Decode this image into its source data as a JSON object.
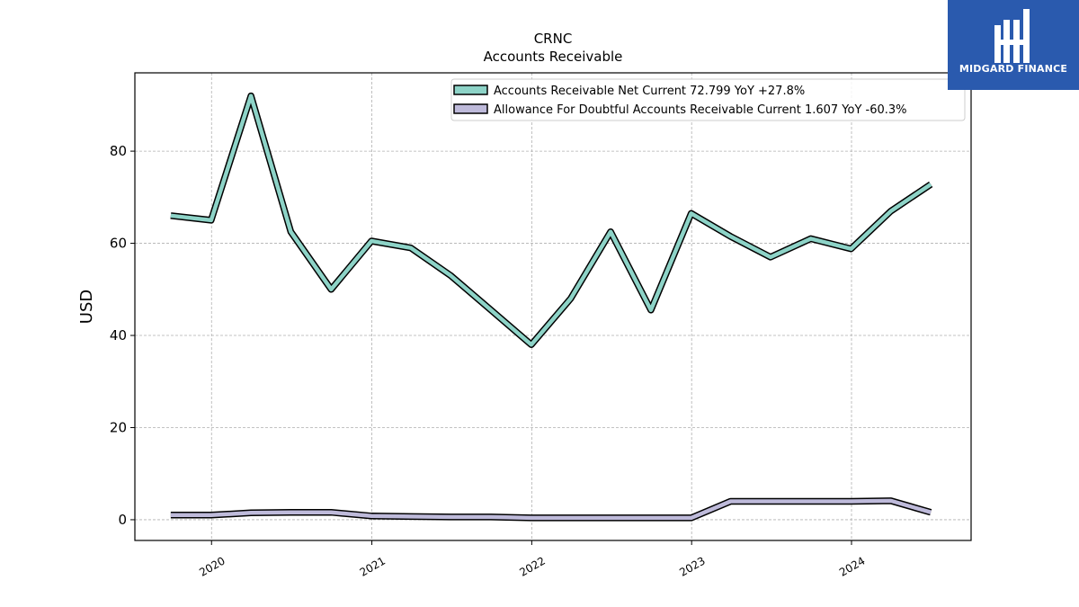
{
  "brand": {
    "name": "MIDGARD FINANCE",
    "bg_color": "#2a5aae"
  },
  "chart_data": {
    "type": "line",
    "title": "CRNC",
    "subtitle": "Accounts Receivable",
    "xlabel": "",
    "ylabel": "USD",
    "x_tick_labels": [
      "2020",
      "2021",
      "2022",
      "2023",
      "2024"
    ],
    "y_ticks": [
      0,
      20,
      40,
      60,
      80
    ],
    "xlim": [
      "2019-07-10",
      "2024-09-30"
    ],
    "ylim": [
      -4.5,
      97
    ],
    "grid": true,
    "legend_position": "top-right",
    "x": [
      "2019-09-30",
      "2019-12-31",
      "2020-03-31",
      "2020-06-30",
      "2020-09-30",
      "2020-12-31",
      "2021-03-31",
      "2021-06-30",
      "2021-09-30",
      "2021-12-31",
      "2022-03-31",
      "2022-06-30",
      "2022-09-30",
      "2022-12-31",
      "2023-03-31",
      "2023-06-30",
      "2023-09-30",
      "2023-12-31",
      "2024-03-31",
      "2024-06-30"
    ],
    "series": [
      {
        "name": "Accounts Receivable Net Current",
        "legend_label": "Accounts Receivable Net Current  72.799 YoY +27.8%",
        "color": "#8dd3c7",
        "values": [
          66.0,
          65.0,
          92.0,
          62.5,
          50.0,
          60.5,
          59.0,
          53.0,
          45.5,
          38.0,
          48.0,
          62.5,
          45.5,
          66.5,
          61.5,
          57.0,
          61.0,
          58.8,
          67.0,
          72.8
        ]
      },
      {
        "name": "Allowance For Doubtful Accounts Receivable Current",
        "legend_label": "Allowance For Doubtful Accounts Receivable Current  1.607 YoY -60.3%",
        "color": "#bebada",
        "values": [
          1.0,
          1.0,
          1.5,
          1.6,
          1.6,
          0.8,
          0.7,
          0.6,
          0.6,
          0.4,
          0.4,
          0.4,
          0.4,
          0.4,
          4.0,
          4.0,
          4.0,
          4.0,
          4.1,
          1.6
        ]
      }
    ]
  }
}
